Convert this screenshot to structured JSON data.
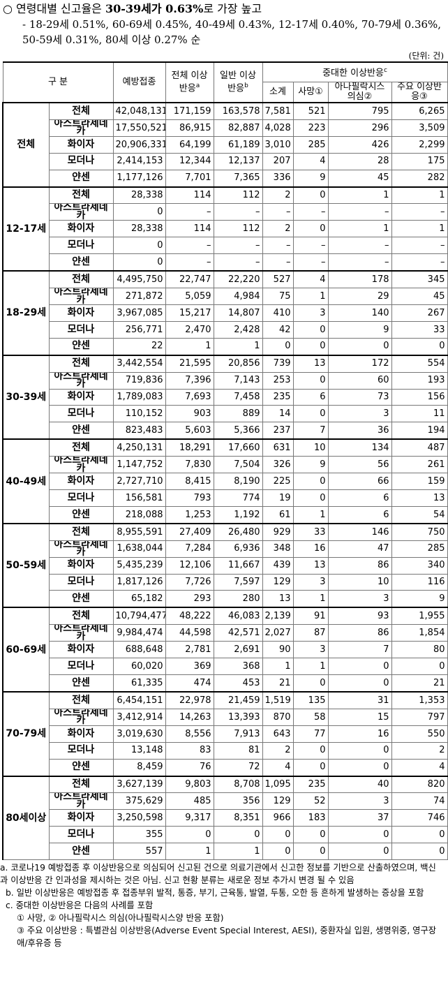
{
  "heading": {
    "parts": [
      "○ 연령대별 신고율은 ",
      "30-39세가 0.63%",
      "로 가장 높고"
    ],
    "sub": "- 18-29세 0.51%, 60-69세 0.45%, 40-49세 0.43%, 12-17세 0.40%, 70-79세 0.36%, 50-59세 0.31%, 80세 이상 0.27% 순"
  },
  "unit": "(단위: 건)",
  "table": {
    "header": {
      "group": "구 분",
      "doses": "예방접종",
      "total": {
        "label": "전체 이상반응",
        "sup": "a"
      },
      "general": {
        "label": "일반 이상반응",
        "sup": "b"
      },
      "serious": {
        "label": "중대한 이상반응",
        "sup": "c"
      },
      "sub": [
        "소계",
        "사망①",
        "아나필락시스 의심②",
        "주요 이상반응③"
      ]
    },
    "groups": [
      {
        "name": "전체",
        "rows": [
          [
            "전체",
            "42,048,131",
            "171,159",
            "163,578",
            "7,581",
            "521",
            "795",
            "6,265"
          ],
          [
            "아스트라제네카",
            "17,550,521",
            "86,915",
            "82,887",
            "4,028",
            "223",
            "296",
            "3,509"
          ],
          [
            "화이자",
            "20,906,331",
            "64,199",
            "61,189",
            "3,010",
            "285",
            "426",
            "2,299"
          ],
          [
            "모더나",
            "2,414,153",
            "12,344",
            "12,137",
            "207",
            "4",
            "28",
            "175"
          ],
          [
            "얀센",
            "1,177,126",
            "7,701",
            "7,365",
            "336",
            "9",
            "45",
            "282"
          ]
        ]
      },
      {
        "name": "12-17세",
        "rows": [
          [
            "전체",
            "28,338",
            "114",
            "112",
            "2",
            "0",
            "1",
            "1"
          ],
          [
            "아스트라제네카",
            "0",
            "–",
            "–",
            "–",
            "–",
            "–",
            "–"
          ],
          [
            "화이자",
            "28,338",
            "114",
            "112",
            "2",
            "0",
            "1",
            "1"
          ],
          [
            "모더나",
            "0",
            "–",
            "–",
            "–",
            "–",
            "–",
            "–"
          ],
          [
            "얀센",
            "0",
            "–",
            "–",
            "–",
            "–",
            "–",
            "–"
          ]
        ]
      },
      {
        "name": "18-29세",
        "rows": [
          [
            "전체",
            "4,495,750",
            "22,747",
            "22,220",
            "527",
            "4",
            "178",
            "345"
          ],
          [
            "아스트라제네카",
            "271,872",
            "5,059",
            "4,984",
            "75",
            "1",
            "29",
            "45"
          ],
          [
            "화이자",
            "3,967,085",
            "15,217",
            "14,807",
            "410",
            "3",
            "140",
            "267"
          ],
          [
            "모더나",
            "256,771",
            "2,470",
            "2,428",
            "42",
            "0",
            "9",
            "33"
          ],
          [
            "얀센",
            "22",
            "1",
            "1",
            "0",
            "0",
            "0",
            "0"
          ]
        ]
      },
      {
        "name": "30-39세",
        "rows": [
          [
            "전체",
            "3,442,554",
            "21,595",
            "20,856",
            "739",
            "13",
            "172",
            "554"
          ],
          [
            "아스트라제네카",
            "719,836",
            "7,396",
            "7,143",
            "253",
            "0",
            "60",
            "193"
          ],
          [
            "화이자",
            "1,789,083",
            "7,693",
            "7,458",
            "235",
            "6",
            "73",
            "156"
          ],
          [
            "모더나",
            "110,152",
            "903",
            "889",
            "14",
            "0",
            "3",
            "11"
          ],
          [
            "얀센",
            "823,483",
            "5,603",
            "5,366",
            "237",
            "7",
            "36",
            "194"
          ]
        ]
      },
      {
        "name": "40-49세",
        "rows": [
          [
            "전체",
            "4,250,131",
            "18,291",
            "17,660",
            "631",
            "10",
            "134",
            "487"
          ],
          [
            "아스트라제네카",
            "1,147,752",
            "7,830",
            "7,504",
            "326",
            "9",
            "56",
            "261"
          ],
          [
            "화이자",
            "2,727,710",
            "8,415",
            "8,190",
            "225",
            "0",
            "66",
            "159"
          ],
          [
            "모더나",
            "156,581",
            "793",
            "774",
            "19",
            "0",
            "6",
            "13"
          ],
          [
            "얀센",
            "218,088",
            "1,253",
            "1,192",
            "61",
            "1",
            "6",
            "54"
          ]
        ]
      },
      {
        "name": "50-59세",
        "rows": [
          [
            "전체",
            "8,955,591",
            "27,409",
            "26,480",
            "929",
            "33",
            "146",
            "750"
          ],
          [
            "아스트라제네카",
            "1,638,044",
            "7,284",
            "6,936",
            "348",
            "16",
            "47",
            "285"
          ],
          [
            "화이자",
            "5,435,239",
            "12,106",
            "11,667",
            "439",
            "13",
            "86",
            "340"
          ],
          [
            "모더나",
            "1,817,126",
            "7,726",
            "7,597",
            "129",
            "3",
            "10",
            "116"
          ],
          [
            "얀센",
            "65,182",
            "293",
            "280",
            "13",
            "1",
            "3",
            "9"
          ]
        ]
      },
      {
        "name": "60-69세",
        "rows": [
          [
            "전체",
            "10,794,477",
            "48,222",
            "46,083",
            "2,139",
            "91",
            "93",
            "1,955"
          ],
          [
            "아스트라제네카",
            "9,984,474",
            "44,598",
            "42,571",
            "2,027",
            "87",
            "86",
            "1,854"
          ],
          [
            "화이자",
            "688,648",
            "2,781",
            "2,691",
            "90",
            "3",
            "7",
            "80"
          ],
          [
            "모더나",
            "60,020",
            "369",
            "368",
            "1",
            "1",
            "0",
            "0"
          ],
          [
            "얀센",
            "61,335",
            "474",
            "453",
            "21",
            "0",
            "0",
            "21"
          ]
        ]
      },
      {
        "name": "70-79세",
        "rows": [
          [
            "전체",
            "6,454,151",
            "22,978",
            "21,459",
            "1,519",
            "135",
            "31",
            "1,353"
          ],
          [
            "아스트라제네카",
            "3,412,914",
            "14,263",
            "13,393",
            "870",
            "58",
            "15",
            "797"
          ],
          [
            "화이자",
            "3,019,630",
            "8,556",
            "7,913",
            "643",
            "77",
            "16",
            "550"
          ],
          [
            "모더나",
            "13,148",
            "83",
            "81",
            "2",
            "0",
            "0",
            "2"
          ],
          [
            "얀센",
            "8,459",
            "76",
            "72",
            "4",
            "0",
            "0",
            "4"
          ]
        ]
      },
      {
        "name": "80세이상",
        "rows": [
          [
            "전체",
            "3,627,139",
            "9,803",
            "8,708",
            "1,095",
            "235",
            "40",
            "820"
          ],
          [
            "아스트라제네카",
            "375,629",
            "485",
            "356",
            "129",
            "52",
            "3",
            "74"
          ],
          [
            "화이자",
            "3,250,598",
            "9,317",
            "8,351",
            "966",
            "183",
            "37",
            "746"
          ],
          [
            "모더나",
            "355",
            "0",
            "0",
            "0",
            "0",
            "0",
            "0"
          ],
          [
            "얀센",
            "557",
            "1",
            "1",
            "0",
            "0",
            "0",
            "0"
          ]
        ]
      }
    ]
  },
  "notes": [
    "a. 코로나19 예방접종 후 이상반응으로 의심되어 신고된 건으로 의료기관에서 신고한 정보를 기반으로 산출하였으며, 백신과 이상반응 간 인과성을 제시하는 것은 아님. 신고 현황 분류는 새로운 정보 추가시 변경 될 수 있음",
    "b. 일반 이상반응은 예방접종 후 접종부위 발적, 통증, 부기, 근육통, 발열, 두통, 오한 등 흔하게 발생하는 증상을 포함",
    "c. 중대한 이상반응은 다음의 사례를 포함",
    "① 사망, ② 아나필락시스 의심(아나필락시스양 반응 포함)",
    "③ 주요 이상반응 : 특별관심 이상반응(Adverse Event Special Interest, AESI), 중환자실 입원, 생명위중, 영구장애/후유증 등"
  ]
}
